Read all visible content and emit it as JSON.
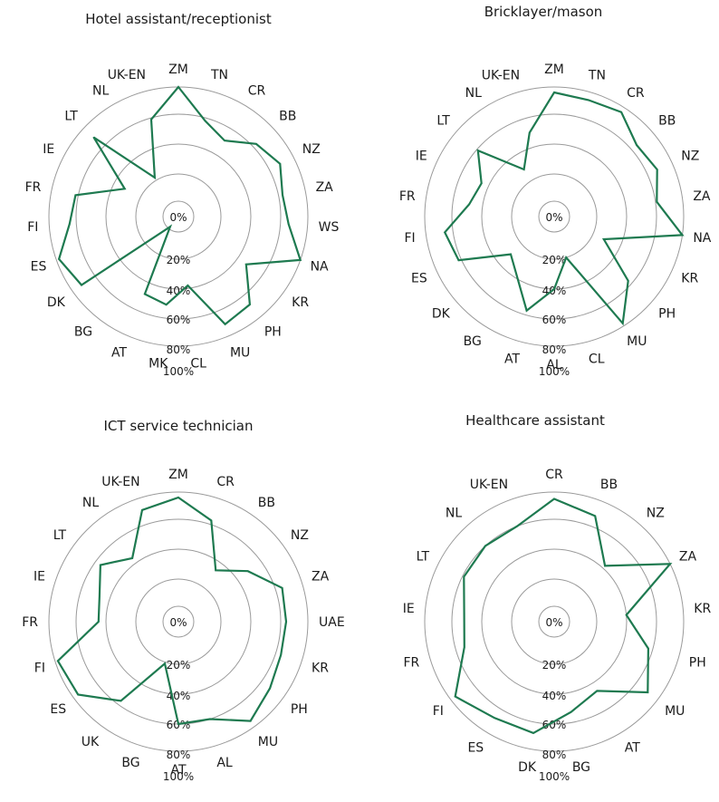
{
  "colors": {
    "series": "#1e7a50",
    "grid": "#9a9a9a",
    "text": "#1a1a1a"
  },
  "chart_data": [
    {
      "type": "radar",
      "title": "Hotel assistant/receptionist",
      "ticks": [
        "0%",
        "20%",
        "40%",
        "60%",
        "80%",
        "100%"
      ],
      "rlim": [
        0,
        100
      ],
      "categories": [
        "ZM",
        "TN",
        "CR",
        "BB",
        "NZ",
        "ZA",
        "WS",
        "NA",
        "KR",
        "PH",
        "MU",
        "CL",
        "MK",
        "AT",
        "BG",
        "DK",
        "ES",
        "FI",
        "FR",
        "IE",
        "LT",
        "NL",
        "UK-EN"
      ],
      "values": [
        100,
        78,
        71,
        83,
        89,
        83,
        86,
        100,
        67,
        88,
        91,
        58,
        71,
        68,
        17,
        92,
        98,
        85,
        82,
        52,
        90,
        42,
        79
      ]
    },
    {
      "type": "radar",
      "title": "Bricklayer/mason",
      "ticks": [
        "0%",
        "20%",
        "40%",
        "60%",
        "80%",
        "100%"
      ],
      "rlim": [
        0,
        100
      ],
      "categories": [
        "ZM",
        "TN",
        "CR",
        "BB",
        "NZ",
        "ZA",
        "NA",
        "KR",
        "PH",
        "MU",
        "CL",
        "AL",
        "AT",
        "BG",
        "DK",
        "ES",
        "FI",
        "FR",
        "IE",
        "LT",
        "NL",
        "UK-EN"
      ],
      "values": [
        96,
        94,
        96,
        85,
        88,
        81,
        100,
        48,
        77,
        98,
        40,
        60,
        77,
        58,
        50,
        82,
        86,
        69,
        65,
        79,
        49,
        70
      ]
    },
    {
      "type": "radar",
      "title": "ICT service technician",
      "ticks": [
        "0%",
        "20%",
        "40%",
        "60%",
        "80%",
        "100%"
      ],
      "rlim": [
        0,
        100
      ],
      "categories": [
        "ZM",
        "CR",
        "BB",
        "NZ",
        "ZA",
        "UAE",
        "KR",
        "PH",
        "MU",
        "AL",
        "AT",
        "BG",
        "UK",
        "ES",
        "FI",
        "FR",
        "IE",
        "LT",
        "NL",
        "UK-EN"
      ],
      "values": [
        96,
        83,
        54,
        69,
        85,
        84,
        84,
        88,
        95,
        80,
        80,
        41,
        77,
        96,
        98,
        65,
        67,
        76,
        64,
        91
      ]
    },
    {
      "type": "radar",
      "title": "Healthcare assistant",
      "ticks": [
        "0%",
        "20%",
        "40%",
        "60%",
        "80%",
        "100%"
      ],
      "rlim": [
        0,
        100
      ],
      "categories": [
        "CR",
        "BB",
        "NZ",
        "ZA",
        "KR",
        "PH",
        "MU",
        "AT",
        "BG",
        "DK",
        "ES",
        "FI",
        "FR",
        "IE",
        "LT",
        "NL",
        "UK-EN"
      ],
      "values": [
        95,
        88,
        62,
        100,
        60,
        77,
        91,
        66,
        73,
        88,
        88,
        96,
        74,
        72,
        79,
        80,
        80
      ]
    }
  ]
}
